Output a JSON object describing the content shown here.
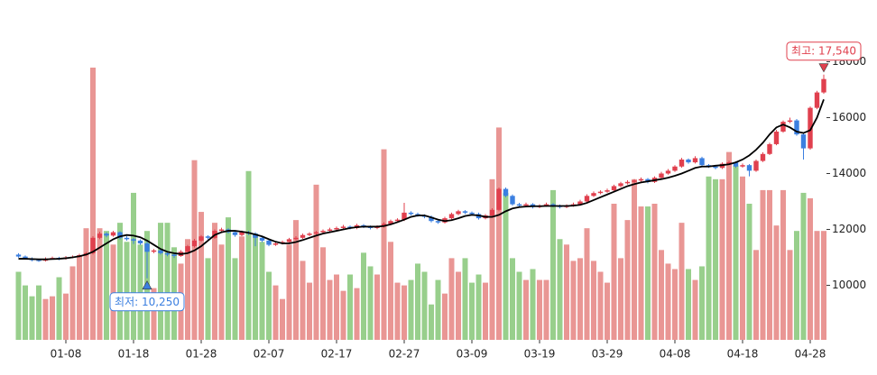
{
  "chart_data": {
    "type": "candlestick",
    "categories": [
      null,
      null,
      null,
      null,
      null,
      null,
      null,
      "01-08",
      null,
      null,
      null,
      null,
      null,
      null,
      null,
      null,
      null,
      "01-18",
      null,
      null,
      null,
      null,
      null,
      null,
      null,
      null,
      null,
      "01-28",
      null,
      null,
      null,
      null,
      null,
      null,
      null,
      null,
      null,
      "02-07",
      null,
      null,
      null,
      null,
      null,
      null,
      null,
      null,
      null,
      "02-17",
      null,
      null,
      null,
      null,
      null,
      null,
      null,
      null,
      null,
      "02-27",
      null,
      null,
      null,
      null,
      null,
      null,
      null,
      null,
      null,
      "03-09",
      null,
      null,
      null,
      null,
      null,
      null,
      null,
      null,
      null,
      "03-19",
      null,
      null,
      null,
      null,
      null,
      null,
      null,
      null,
      null,
      "03-29",
      null,
      null,
      null,
      null,
      null,
      null,
      null,
      null,
      null,
      "04-08",
      null,
      null,
      null,
      null,
      null,
      null,
      null,
      null,
      null,
      "04-18",
      null,
      null,
      null,
      null,
      null,
      null,
      null,
      null,
      null,
      "04-28",
      null,
      null
    ],
    "ohlc": [
      [
        11100,
        11150,
        10990,
        11030
      ],
      [
        11030,
        11070,
        10920,
        10960
      ],
      [
        10960,
        11000,
        10860,
        10900
      ],
      [
        10900,
        10950,
        10840,
        10880
      ],
      [
        10880,
        11000,
        10850,
        10950
      ],
      [
        10950,
        11030,
        10920,
        10980
      ],
      [
        10980,
        11020,
        10900,
        10950
      ],
      [
        10950,
        11050,
        10920,
        11000
      ],
      [
        11000,
        11070,
        10970,
        11020
      ],
      [
        11020,
        11130,
        10990,
        11080
      ],
      [
        11080,
        11200,
        11040,
        11150
      ],
      [
        11150,
        11760,
        11100,
        11700
      ],
      [
        11700,
        11920,
        11650,
        11850
      ],
      [
        11850,
        11900,
        11720,
        11780
      ],
      [
        11780,
        11950,
        11740,
        11900
      ],
      [
        11900,
        11930,
        11640,
        11700
      ],
      [
        11700,
        11760,
        11600,
        11650
      ],
      [
        11650,
        11700,
        11480,
        11600
      ],
      [
        11600,
        11640,
        11450,
        11500
      ],
      [
        11500,
        11560,
        10250,
        11200
      ],
      [
        11200,
        11300,
        11150,
        11250
      ],
      [
        11250,
        11290,
        11100,
        11150
      ],
      [
        11150,
        11200,
        11040,
        11100
      ],
      [
        11100,
        11140,
        10980,
        11050
      ],
      [
        11050,
        11260,
        11020,
        11200
      ],
      [
        11200,
        11450,
        11160,
        11400
      ],
      [
        11400,
        11660,
        11350,
        11600
      ],
      [
        11600,
        11800,
        11560,
        11750
      ],
      [
        11750,
        11790,
        11640,
        11700
      ],
      [
        11700,
        12000,
        11660,
        11950
      ],
      [
        11950,
        12060,
        11900,
        12000
      ],
      [
        12000,
        12040,
        11850,
        11900
      ],
      [
        11900,
        11950,
        11740,
        11800
      ],
      [
        11800,
        11960,
        11760,
        11900
      ],
      [
        11900,
        11950,
        11800,
        11850
      ],
      [
        11850,
        11900,
        11400,
        11700
      ],
      [
        11700,
        11750,
        11540,
        11600
      ],
      [
        11600,
        11650,
        11400,
        11450
      ],
      [
        11450,
        11560,
        11410,
        11500
      ],
      [
        11500,
        11600,
        11460,
        11550
      ],
      [
        11550,
        11700,
        11500,
        11650
      ],
      [
        11650,
        11760,
        11610,
        11700
      ],
      [
        11700,
        11850,
        11660,
        11800
      ],
      [
        11800,
        11900,
        11760,
        11850
      ],
      [
        11850,
        11950,
        11800,
        11900
      ],
      [
        11900,
        12000,
        11860,
        11950
      ],
      [
        11950,
        12060,
        11910,
        12000
      ],
      [
        12000,
        12100,
        11960,
        12050
      ],
      [
        12050,
        12160,
        12000,
        12100
      ],
      [
        12100,
        12140,
        12000,
        12050
      ],
      [
        12050,
        12200,
        12010,
        12150
      ],
      [
        12150,
        12190,
        12050,
        12100
      ],
      [
        12100,
        12140,
        12000,
        12050
      ],
      [
        12050,
        12150,
        12010,
        12100
      ],
      [
        12100,
        12260,
        12060,
        12200
      ],
      [
        12200,
        12350,
        12160,
        12300
      ],
      [
        12300,
        12400,
        12260,
        12350
      ],
      [
        12350,
        12950,
        12300,
        12600
      ],
      [
        12600,
        12650,
        12500,
        12550
      ],
      [
        12550,
        12600,
        12450,
        12500
      ],
      [
        12500,
        12540,
        12400,
        12450
      ],
      [
        12450,
        12500,
        12250,
        12300
      ],
      [
        12300,
        12340,
        12200,
        12250
      ],
      [
        12250,
        12450,
        12210,
        12400
      ],
      [
        12400,
        12600,
        12360,
        12550
      ],
      [
        12550,
        12700,
        12510,
        12650
      ],
      [
        12650,
        12690,
        12550,
        12600
      ],
      [
        12600,
        12640,
        12500,
        12550
      ],
      [
        12550,
        12600,
        12350,
        12400
      ],
      [
        12400,
        12550,
        12360,
        12500
      ],
      [
        12500,
        12760,
        12460,
        12700
      ],
      [
        12700,
        13500,
        12650,
        13450
      ],
      [
        13450,
        13500,
        13150,
        13200
      ],
      [
        13200,
        13250,
        12850,
        12900
      ],
      [
        12900,
        12950,
        12800,
        12850
      ],
      [
        12850,
        12960,
        12810,
        12900
      ],
      [
        12900,
        12940,
        12750,
        12800
      ],
      [
        12800,
        12900,
        12760,
        12850
      ],
      [
        12850,
        12960,
        12810,
        12900
      ],
      [
        12900,
        12940,
        12800,
        12850
      ],
      [
        12850,
        12890,
        12750,
        12800
      ],
      [
        12800,
        12900,
        12760,
        12850
      ],
      [
        12850,
        12960,
        12810,
        12900
      ],
      [
        12900,
        13060,
        12860,
        13000
      ],
      [
        13000,
        13260,
        12960,
        13200
      ],
      [
        13200,
        13360,
        13160,
        13300
      ],
      [
        13300,
        13400,
        13260,
        13350
      ],
      [
        13350,
        13460,
        13310,
        13400
      ],
      [
        13400,
        13600,
        13360,
        13550
      ],
      [
        13550,
        13700,
        13510,
        13650
      ],
      [
        13650,
        13760,
        13610,
        13700
      ],
      [
        13700,
        13800,
        13660,
        13750
      ],
      [
        13750,
        13860,
        13710,
        13800
      ],
      [
        13800,
        13840,
        13650,
        13700
      ],
      [
        13700,
        13900,
        13660,
        13850
      ],
      [
        13850,
        14060,
        13810,
        14000
      ],
      [
        14000,
        14160,
        13960,
        14100
      ],
      [
        14100,
        14300,
        14060,
        14250
      ],
      [
        14250,
        14560,
        14210,
        14500
      ],
      [
        14500,
        14540,
        14350,
        14400
      ],
      [
        14400,
        14620,
        14360,
        14550
      ],
      [
        14550,
        14600,
        14250,
        14300
      ],
      [
        14300,
        14340,
        14200,
        14250
      ],
      [
        14250,
        14290,
        14150,
        14200
      ],
      [
        14200,
        14400,
        14160,
        14350
      ],
      [
        14350,
        14460,
        14310,
        14400
      ],
      [
        14400,
        14440,
        14200,
        14250
      ],
      [
        14250,
        14360,
        14210,
        14300
      ],
      [
        14300,
        14340,
        13900,
        14100
      ],
      [
        14100,
        14500,
        14060,
        14450
      ],
      [
        14450,
        14760,
        14410,
        14700
      ],
      [
        14700,
        15100,
        14660,
        15050
      ],
      [
        15050,
        15560,
        15010,
        15500
      ],
      [
        15500,
        15900,
        15460,
        15850
      ],
      [
        15850,
        16000,
        15800,
        15900
      ],
      [
        15900,
        15950,
        15350,
        15400
      ],
      [
        15400,
        15450,
        14500,
        14900
      ],
      [
        14900,
        16400,
        14850,
        16350
      ],
      [
        16350,
        16960,
        16300,
        16900
      ],
      [
        16900,
        17540,
        16850,
        17380
      ]
    ],
    "ma": [
      10950,
      10950,
      10940,
      10930,
      10930,
      10940,
      10950,
      10970,
      11000,
      11040,
      11100,
      11200,
      11350,
      11500,
      11650,
      11750,
      11800,
      11780,
      11720,
      11600,
      11450,
      11300,
      11200,
      11150,
      11120,
      11150,
      11250,
      11400,
      11600,
      11800,
      11900,
      11950,
      11950,
      11920,
      11880,
      11820,
      11750,
      11650,
      11560,
      11500,
      11500,
      11550,
      11620,
      11700,
      11780,
      11850,
      11900,
      11950,
      12000,
      12050,
      12080,
      12100,
      12100,
      12100,
      12120,
      12180,
      12260,
      12350,
      12450,
      12500,
      12500,
      12430,
      12350,
      12300,
      12330,
      12400,
      12480,
      12520,
      12500,
      12450,
      12450,
      12520,
      12650,
      12750,
      12800,
      12820,
      12830,
      12830,
      12840,
      12840,
      12840,
      12840,
      12850,
      12880,
      12950,
      13050,
      13150,
      13250,
      13350,
      13450,
      13550,
      13620,
      13680,
      13720,
      13760,
      13800,
      13850,
      13920,
      14000,
      14100,
      14200,
      14250,
      14250,
      14280,
      14300,
      14330,
      14400,
      14500,
      14650,
      14850,
      15100,
      15400,
      15650,
      15750,
      15650,
      15500,
      15450,
      15550,
      16000,
      16650
    ],
    "volume": [
      25,
      20,
      16,
      20,
      15,
      16,
      23,
      17,
      27,
      31,
      41,
      100,
      41,
      40,
      35,
      43,
      36,
      54,
      35,
      40,
      19,
      43,
      43,
      34,
      28,
      37,
      66,
      47,
      30,
      43,
      35,
      45,
      30,
      38,
      62,
      39,
      36,
      25,
      20,
      15,
      35,
      44,
      29,
      21,
      57,
      34,
      22,
      24,
      18,
      24,
      19,
      32,
      27,
      24,
      70,
      36,
      21,
      20,
      22,
      28,
      25,
      13,
      22,
      17,
      30,
      25,
      30,
      21,
      24,
      21,
      59,
      78,
      54,
      30,
      25,
      22,
      26,
      22,
      22,
      55,
      37,
      35,
      29,
      30,
      41,
      29,
      25,
      21,
      50,
      30,
      44,
      59,
      49,
      49,
      50,
      33,
      28,
      26,
      43,
      26,
      22,
      27,
      60,
      59,
      59,
      69,
      64,
      60,
      50,
      33,
      55,
      55,
      42,
      55,
      33,
      40,
      54,
      52,
      40,
      40
    ],
    "volume_lim": [
      0,
      100
    ],
    "ylim": [
      8050,
      18950
    ],
    "yticks": [
      10000,
      12000,
      14000,
      16000,
      18000
    ],
    "colors": {
      "up": "#e0404e",
      "down": "#3b7fe0",
      "volume_up": "#e8908e",
      "volume_down": "#92cc86",
      "ma": "#000000"
    },
    "annotations": [
      {
        "label": "최고: 17,540",
        "value": 17540,
        "index": 119,
        "color": "#e0404e"
      },
      {
        "label": "최저: 10,250",
        "value": 10250,
        "index": 19,
        "color": "#3b7fe0"
      }
    ]
  }
}
